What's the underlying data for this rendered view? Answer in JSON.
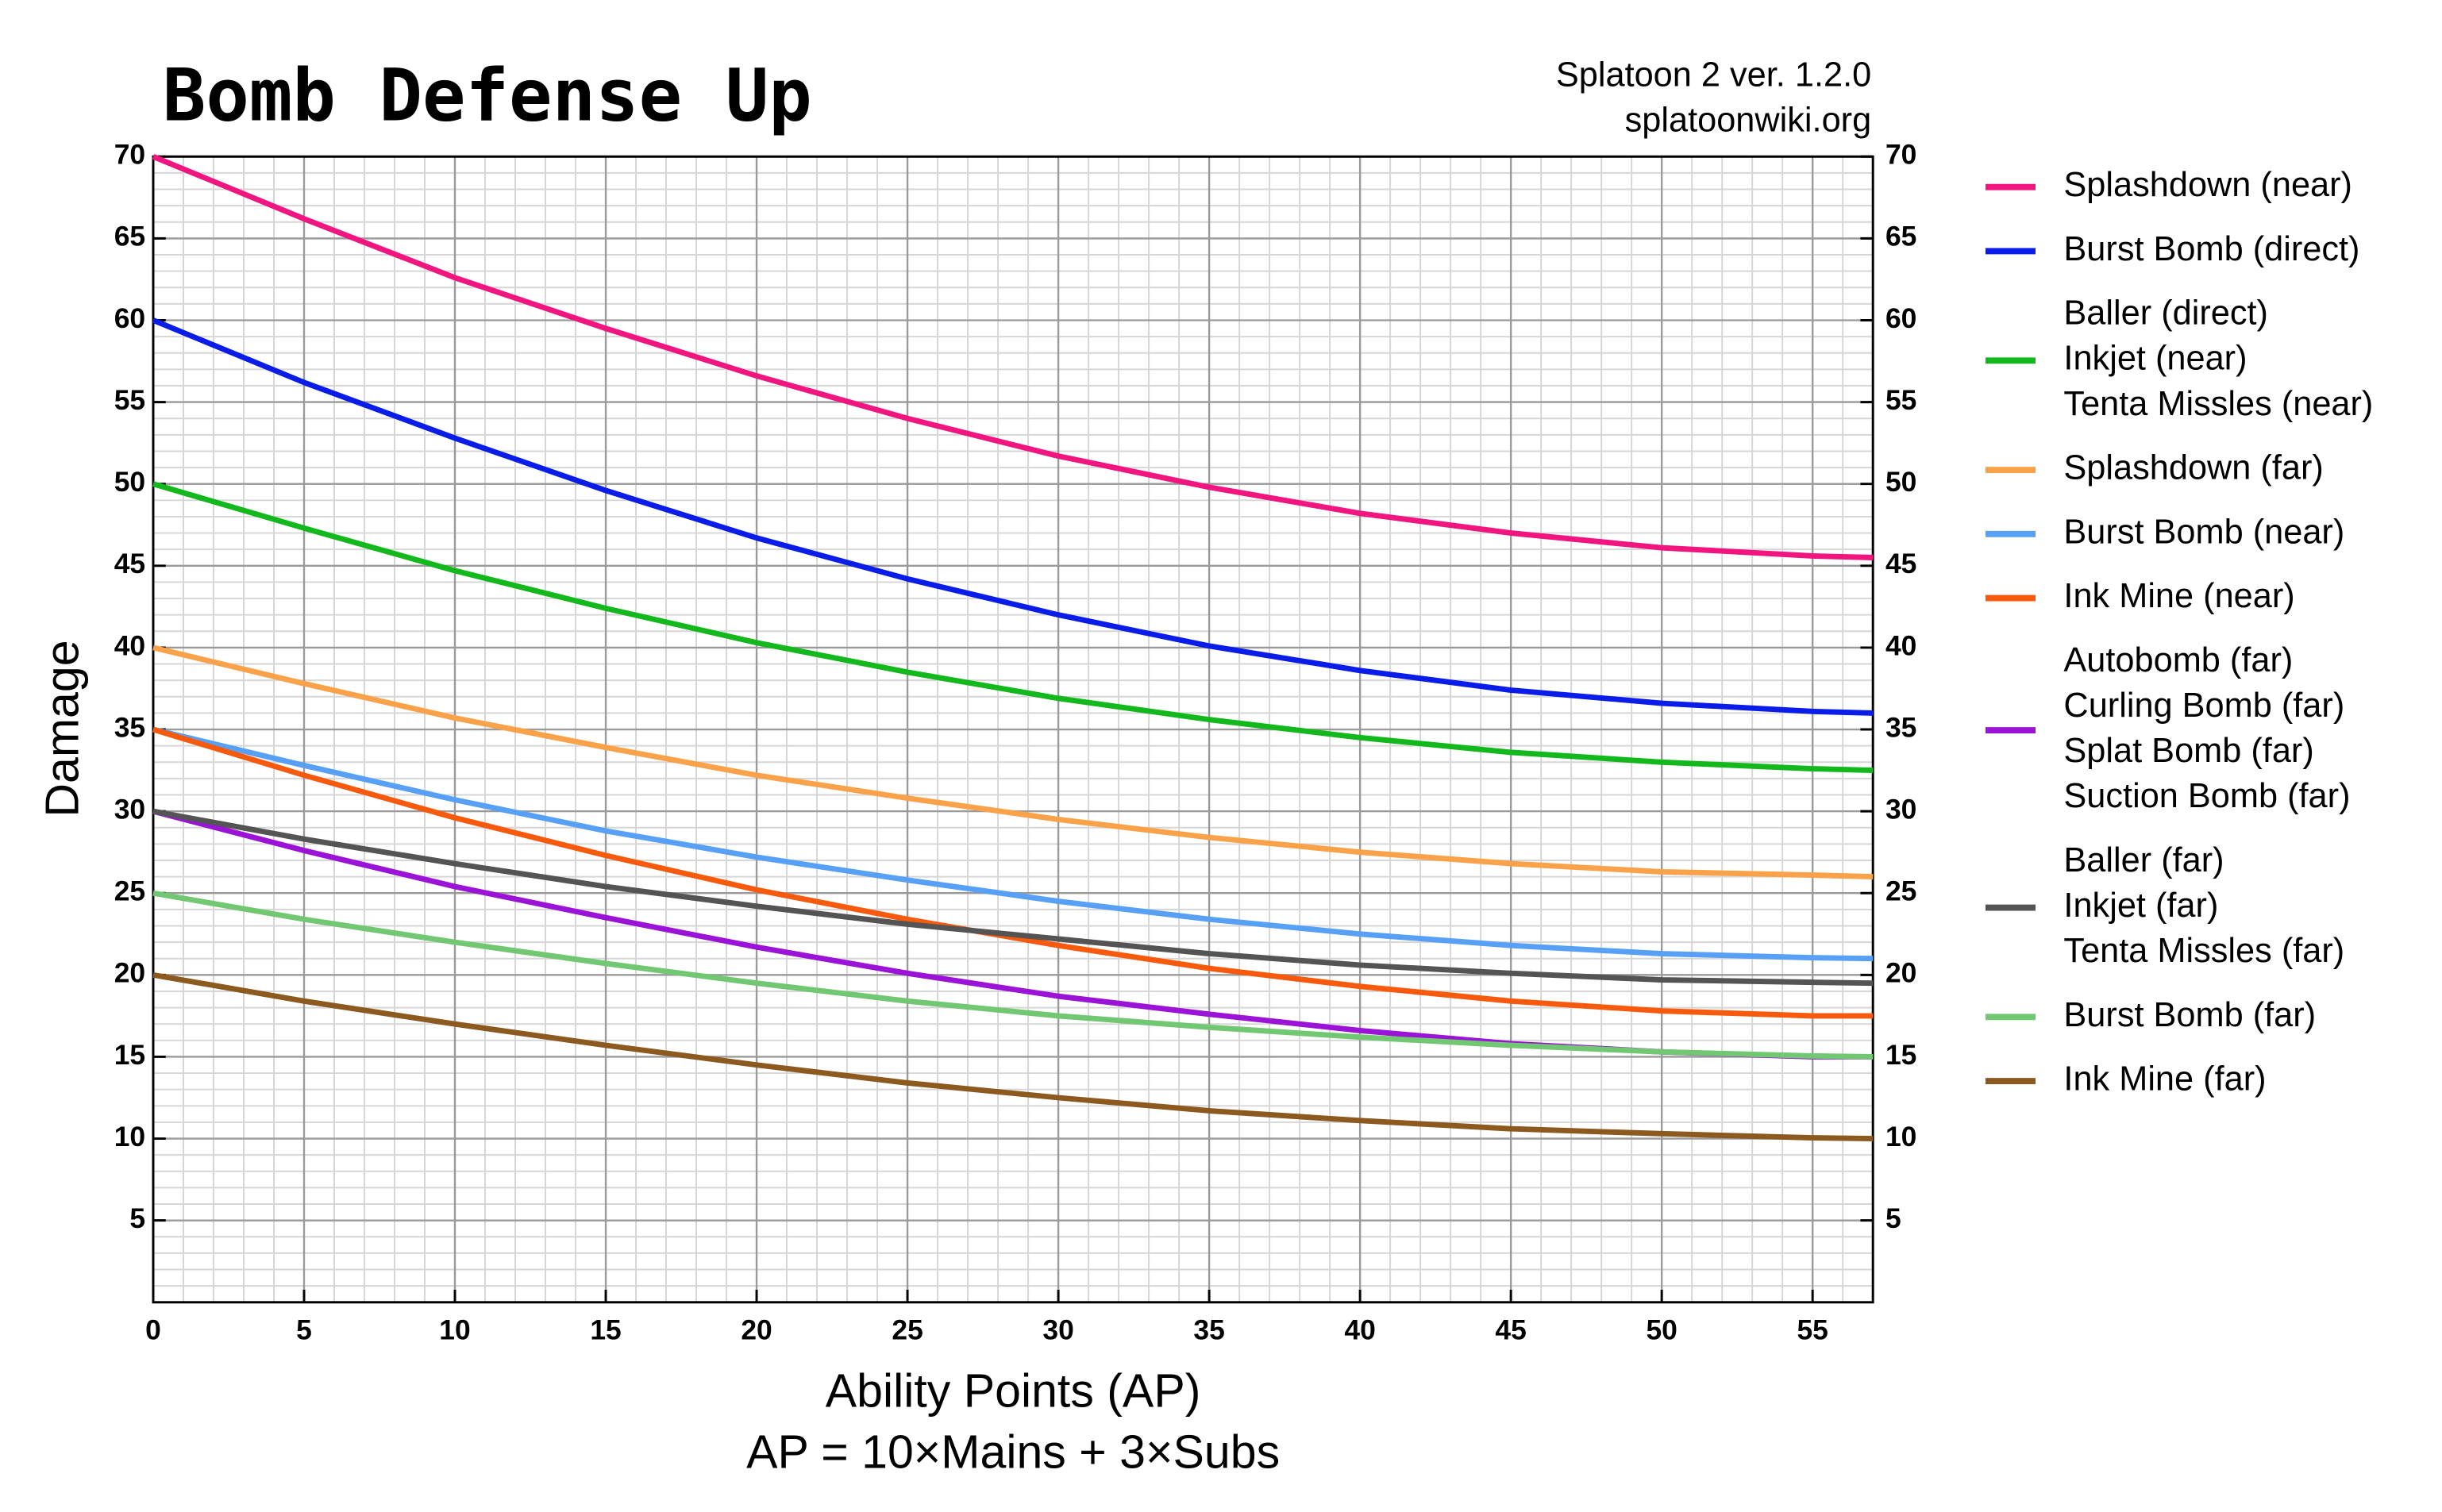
{
  "chart_data": {
    "type": "line",
    "title": "Bomb Defense Up",
    "subtitle": [
      "Splatoon 2 ver. 1.2.0",
      "splatoonwiki.org"
    ],
    "x_label": [
      "Ability Points (AP)",
      "AP = 10×Mains + 3×Subs"
    ],
    "y_label": "Damage",
    "x": [
      0,
      5,
      10,
      15,
      20,
      25,
      30,
      35,
      40,
      45,
      50,
      55,
      57
    ],
    "xlim": [
      0,
      57
    ],
    "xticks": [
      0,
      5,
      10,
      15,
      20,
      25,
      30,
      35,
      40,
      45,
      50,
      55
    ],
    "ylim": [
      0,
      70
    ],
    "yticks": [
      5,
      10,
      15,
      20,
      25,
      30,
      35,
      40,
      45,
      50,
      55,
      60,
      65,
      70
    ],
    "grid": true,
    "legend": "right",
    "series": [
      {
        "name": [
          "Splashdown (near)"
        ],
        "color": "#f0157f",
        "values": [
          70,
          66.2,
          62.6,
          59.5,
          56.6,
          54,
          51.7,
          49.8,
          48.2,
          47,
          46.1,
          45.6,
          45.5
        ]
      },
      {
        "name": [
          "Burst Bomb (direct)"
        ],
        "color": "#0a1de8",
        "values": [
          60,
          56.2,
          52.8,
          49.6,
          46.7,
          44.2,
          42,
          40.1,
          38.6,
          37.4,
          36.6,
          36.1,
          36
        ]
      },
      {
        "name": [
          "Baller (direct)",
          "Inkjet (near)",
          "Tenta Missles (near)"
        ],
        "color": "#13b81c",
        "values": [
          50,
          47.3,
          44.7,
          42.4,
          40.3,
          38.5,
          36.9,
          35.6,
          34.5,
          33.6,
          33,
          32.6,
          32.5
        ]
      },
      {
        "name": [
          "Splashdown (far)"
        ],
        "color": "#f9a24a",
        "values": [
          40,
          37.8,
          35.7,
          33.9,
          32.2,
          30.8,
          29.5,
          28.4,
          27.5,
          26.8,
          26.3,
          26.1,
          26
        ]
      },
      {
        "name": [
          "Burst Bomb (near)"
        ],
        "color": "#57a0f5",
        "values": [
          35,
          32.8,
          30.7,
          28.8,
          27.2,
          25.8,
          24.5,
          23.4,
          22.5,
          21.8,
          21.3,
          21.05,
          21
        ]
      },
      {
        "name": [
          "Ink Mine (near)"
        ],
        "color": "#f75a0d",
        "values": [
          35,
          32.2,
          29.6,
          27.3,
          25.2,
          23.4,
          21.8,
          20.4,
          19.3,
          18.4,
          17.8,
          17.5,
          17.5
        ]
      },
      {
        "name": [
          "Autobomb (far)",
          "Curling Bomb (far)",
          "Splat Bomb (far)",
          "Suction Bomb (far)"
        ],
        "color": "#9b13d6",
        "values": [
          30,
          27.6,
          25.4,
          23.5,
          21.7,
          20.1,
          18.7,
          17.6,
          16.6,
          15.8,
          15.3,
          15,
          15
        ]
      },
      {
        "name": [
          "Baller (far)",
          "Inkjet (far)",
          "Tenta Missles (far)"
        ],
        "color": "#545454",
        "values": [
          30,
          28.3,
          26.8,
          25.4,
          24.2,
          23.1,
          22.2,
          21.3,
          20.6,
          20.1,
          19.7,
          19.55,
          19.5
        ]
      },
      {
        "name": [
          "Burst Bomb (far)"
        ],
        "color": "#72c872",
        "values": [
          25,
          23.4,
          22,
          20.7,
          19.5,
          18.4,
          17.5,
          16.8,
          16.2,
          15.7,
          15.3,
          15.05,
          15
        ]
      },
      {
        "name": [
          "Ink Mine (far)"
        ],
        "color": "#8c5a1f",
        "values": [
          20,
          18.4,
          17,
          15.7,
          14.5,
          13.4,
          12.5,
          11.7,
          11.1,
          10.6,
          10.3,
          10.05,
          10
        ]
      }
    ]
  }
}
